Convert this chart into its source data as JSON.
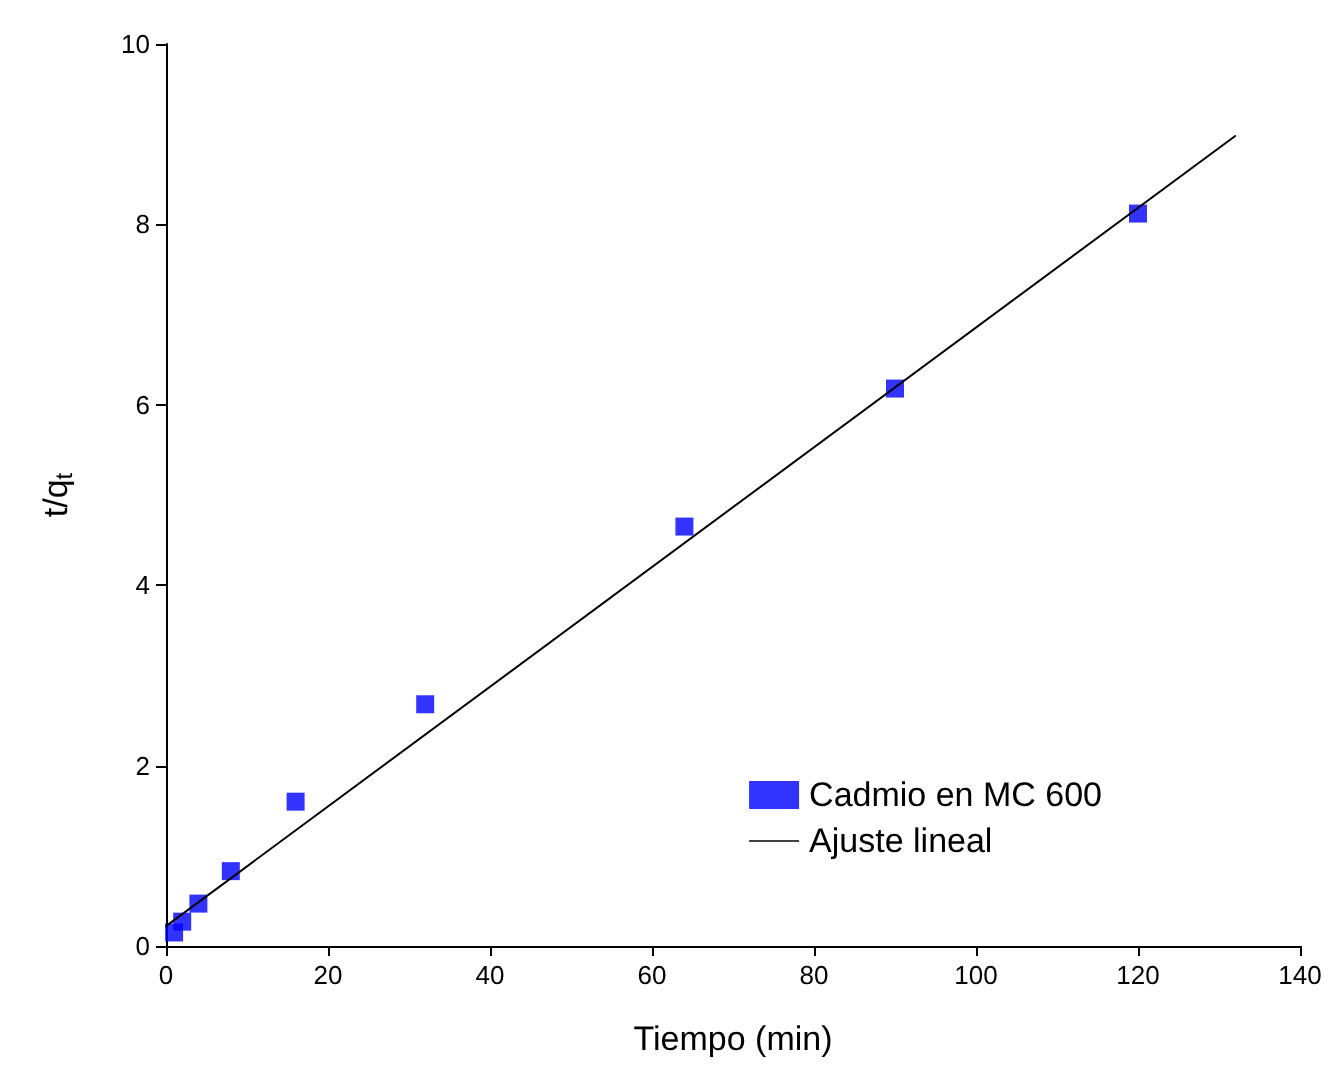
{
  "chart_data": {
    "type": "scatter",
    "xlabel": "Tiempo (min)",
    "ylabel": "t/q$_{t}$",
    "xlim": [
      0,
      140
    ],
    "xticks": [
      0,
      20,
      40,
      60,
      80,
      100,
      120,
      140
    ],
    "ylim": [
      0,
      10
    ],
    "yticks": [
      0,
      2,
      4,
      6,
      8,
      10
    ],
    "grid": false,
    "legend": "bottom right",
    "series": [
      {
        "name": "Cadmio en MC 600",
        "marker": "square",
        "color": "#0000ff",
        "x": [
          1,
          2,
          4,
          8,
          16,
          32,
          64,
          90,
          120
        ],
        "values": [
          0.15,
          0.27,
          0.47,
          0.83,
          1.6,
          2.68,
          4.65,
          6.18,
          8.12
        ]
      },
      {
        "name": "Ajuste lineal",
        "type": "line",
        "marker": "none",
        "line_style": "solid",
        "color": "#000000",
        "x": [
          0,
          132
        ],
        "values": [
          0.22,
          8.98
        ]
      }
    ]
  }
}
